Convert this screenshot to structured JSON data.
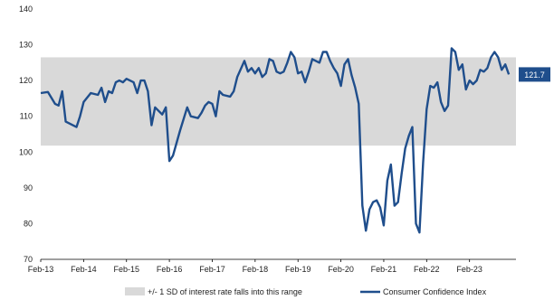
{
  "chart_data": {
    "type": "line",
    "title": "",
    "xlabel": "",
    "ylabel": "",
    "ylim": [
      70,
      140
    ],
    "y_ticks": [
      70,
      80,
      90,
      100,
      110,
      120,
      130,
      140
    ],
    "x_range": [
      "2013-02",
      "2023-09"
    ],
    "x_ticks": [
      "Feb-13",
      "Feb-14",
      "Feb-15",
      "Feb-16",
      "Feb-17",
      "Feb-18",
      "Feb-19",
      "Feb-20",
      "Feb-21",
      "Feb-22",
      "Feb-23"
    ],
    "grid": false,
    "legend_position": "bottom",
    "band": {
      "name": "+/- 1 SD of interest rate falls into this range",
      "range": [
        101.8,
        126.5
      ],
      "color": "#d9d9d9"
    },
    "series": [
      {
        "name": "Consumer Confidence Index",
        "color": "#1f4e8c",
        "end_label": "121.7",
        "points": [
          [
            "2013-02",
            116.5
          ],
          [
            "2013-04",
            116.8
          ],
          [
            "2013-06",
            113.5
          ],
          [
            "2013-07",
            113.0
          ],
          [
            "2013-08",
            117.0
          ],
          [
            "2013-09",
            108.5
          ],
          [
            "2013-11",
            107.5
          ],
          [
            "2013-12",
            107.0
          ],
          [
            "2014-01",
            110.0
          ],
          [
            "2014-02",
            114.0
          ],
          [
            "2014-04",
            116.5
          ],
          [
            "2014-06",
            116.0
          ],
          [
            "2014-07",
            118.0
          ],
          [
            "2014-08",
            114.0
          ],
          [
            "2014-09",
            117.0
          ],
          [
            "2014-10",
            116.5
          ],
          [
            "2014-11",
            119.5
          ],
          [
            "2014-12",
            120.0
          ],
          [
            "2015-01",
            119.5
          ],
          [
            "2015-02",
            120.5
          ],
          [
            "2015-04",
            119.5
          ],
          [
            "2015-05",
            116.5
          ],
          [
            "2015-06",
            120.0
          ],
          [
            "2015-07",
            120.0
          ],
          [
            "2015-08",
            117.0
          ],
          [
            "2015-09",
            107.5
          ],
          [
            "2015-10",
            112.5
          ],
          [
            "2015-12",
            110.5
          ],
          [
            "2016-01",
            112.5
          ],
          [
            "2016-02",
            97.5
          ],
          [
            "2016-03",
            99.0
          ],
          [
            "2016-05",
            106.0
          ],
          [
            "2016-07",
            112.5
          ],
          [
            "2016-08",
            110.0
          ],
          [
            "2016-10",
            109.5
          ],
          [
            "2016-11",
            111.0
          ],
          [
            "2016-12",
            113.0
          ],
          [
            "2017-01",
            114.0
          ],
          [
            "2017-02",
            113.5
          ],
          [
            "2017-03",
            110.0
          ],
          [
            "2017-04",
            117.0
          ],
          [
            "2017-05",
            116.0
          ],
          [
            "2017-07",
            115.5
          ],
          [
            "2017-08",
            117.0
          ],
          [
            "2017-09",
            121.0
          ],
          [
            "2017-11",
            125.5
          ],
          [
            "2017-12",
            122.5
          ],
          [
            "2018-01",
            123.5
          ],
          [
            "2018-02",
            122.0
          ],
          [
            "2018-03",
            123.5
          ],
          [
            "2018-04",
            121.0
          ],
          [
            "2018-05",
            122.0
          ],
          [
            "2018-06",
            126.0
          ],
          [
            "2018-07",
            125.5
          ],
          [
            "2018-08",
            122.5
          ],
          [
            "2018-09",
            122.0
          ],
          [
            "2018-10",
            122.5
          ],
          [
            "2018-11",
            125.0
          ],
          [
            "2018-12",
            128.0
          ],
          [
            "2019-01",
            126.5
          ],
          [
            "2019-02",
            122.0
          ],
          [
            "2019-03",
            122.5
          ],
          [
            "2019-04",
            119.5
          ],
          [
            "2019-05",
            122.5
          ],
          [
            "2019-06",
            126.0
          ],
          [
            "2019-07",
            125.5
          ],
          [
            "2019-08",
            125.0
          ],
          [
            "2019-09",
            128.0
          ],
          [
            "2019-10",
            128.0
          ],
          [
            "2019-11",
            125.5
          ],
          [
            "2019-12",
            123.5
          ],
          [
            "2020-01",
            122.0
          ],
          [
            "2020-02",
            118.5
          ],
          [
            "2020-03",
            124.5
          ],
          [
            "2020-04",
            126.0
          ],
          [
            "2020-05",
            121.5
          ],
          [
            "2020-06",
            118.0
          ],
          [
            "2020-07",
            113.5
          ],
          [
            "2020-08",
            85.0
          ],
          [
            "2020-09",
            78.0
          ],
          [
            "2020-10",
            84.0
          ],
          [
            "2020-11",
            86.0
          ],
          [
            "2020-12",
            86.5
          ],
          [
            "2021-01",
            84.5
          ],
          [
            "2021-02",
            79.5
          ],
          [
            "2021-03",
            92.0
          ],
          [
            "2021-04",
            96.5
          ],
          [
            "2021-05",
            85.0
          ],
          [
            "2021-06",
            86.0
          ],
          [
            "2021-07",
            94.0
          ],
          [
            "2021-08",
            101.0
          ],
          [
            "2021-09",
            104.5
          ],
          [
            "2021-10",
            107.0
          ],
          [
            "2021-11",
            80.0
          ],
          [
            "2021-12",
            77.5
          ],
          [
            "2022-01",
            97.0
          ],
          [
            "2022-02",
            112.0
          ],
          [
            "2022-03",
            118.5
          ],
          [
            "2022-04",
            118.0
          ],
          [
            "2022-05",
            119.5
          ],
          [
            "2022-06",
            114.0
          ],
          [
            "2022-07",
            111.5
          ],
          [
            "2022-08",
            113.0
          ],
          [
            "2022-09",
            129.0
          ],
          [
            "2022-10",
            128.0
          ],
          [
            "2022-11",
            123.0
          ],
          [
            "2022-12",
            124.5
          ],
          [
            "2023-01",
            117.5
          ],
          [
            "2023-02",
            120.0
          ],
          [
            "2023-03",
            119.0
          ],
          [
            "2023-04",
            120.0
          ],
          [
            "2023-05",
            123.0
          ],
          [
            "2023-06",
            122.5
          ],
          [
            "2023-07",
            123.5
          ],
          [
            "2023-08",
            126.5
          ],
          [
            "2023-09",
            128.0
          ],
          [
            "2023-10",
            126.5
          ],
          [
            "2023-11",
            123.0
          ],
          [
            "2023-12",
            124.5
          ],
          [
            "2024-01",
            121.7
          ]
        ]
      }
    ]
  }
}
